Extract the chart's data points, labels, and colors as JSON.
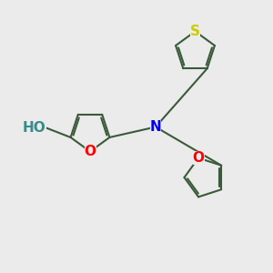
{
  "bg_color": "#ebebeb",
  "bond_color": "#3a5a3a",
  "atom_colors": {
    "O": "#ff0000",
    "S": "#cccc00",
    "N": "#0000ee",
    "HO": "#3a8a8a"
  },
  "lw": 1.5,
  "dbo": 0.07,
  "fs": 11
}
